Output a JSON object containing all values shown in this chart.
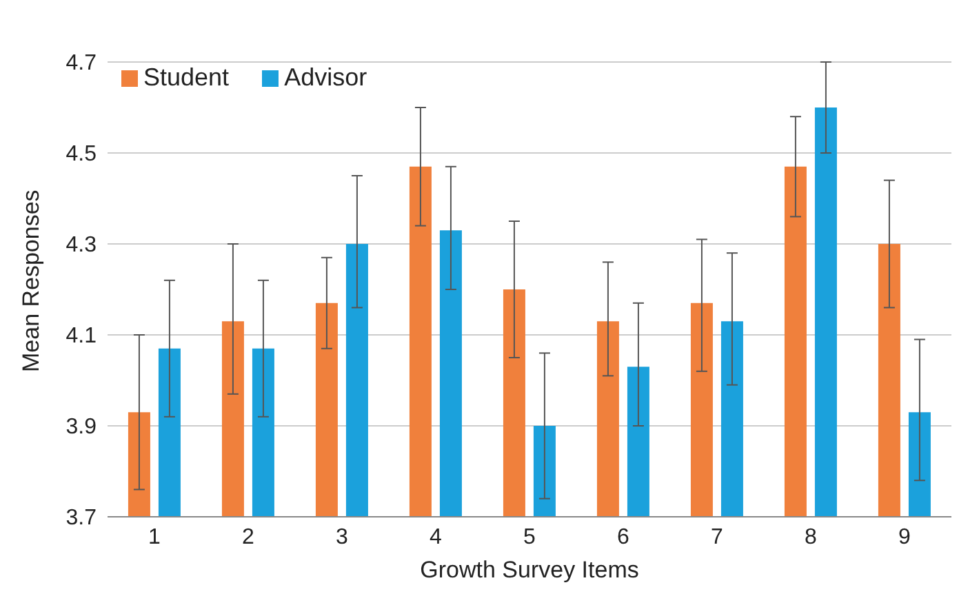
{
  "chart_data": {
    "type": "bar",
    "xlabel": "Growth Survey Items",
    "ylabel": "Mean Responses",
    "categories": [
      "1",
      "2",
      "3",
      "4",
      "5",
      "6",
      "7",
      "8",
      "9"
    ],
    "series": [
      {
        "name": "Student",
        "color": "#f0803c",
        "values": [
          3.93,
          4.13,
          4.17,
          4.47,
          4.2,
          4.13,
          4.17,
          4.47,
          4.3
        ],
        "errors": [
          [
            3.76,
            4.1
          ],
          [
            3.97,
            4.3
          ],
          [
            4.07,
            4.27
          ],
          [
            4.34,
            4.6
          ],
          [
            4.05,
            4.35
          ],
          [
            4.01,
            4.26
          ],
          [
            4.02,
            4.31
          ],
          [
            4.36,
            4.58
          ],
          [
            4.16,
            4.44
          ]
        ]
      },
      {
        "name": "Advisor",
        "color": "#1ba1dc",
        "values": [
          4.07,
          4.07,
          4.3,
          4.33,
          3.9,
          4.03,
          4.13,
          4.6,
          3.93
        ],
        "errors": [
          [
            3.92,
            4.22
          ],
          [
            3.92,
            4.22
          ],
          [
            4.16,
            4.45
          ],
          [
            4.2,
            4.47
          ],
          [
            3.74,
            4.06
          ],
          [
            3.9,
            4.17
          ],
          [
            3.99,
            4.28
          ],
          [
            4.5,
            4.7
          ],
          [
            3.78,
            4.09
          ]
        ]
      }
    ],
    "ylim": [
      3.7,
      4.7
    ],
    "yticks": [
      3.7,
      3.9,
      4.1,
      4.3,
      4.5,
      4.7
    ],
    "grid": "y",
    "legend": "top left"
  }
}
